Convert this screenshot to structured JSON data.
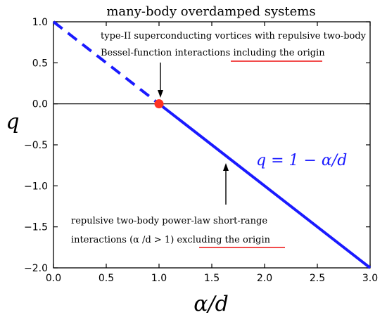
{
  "chart_data": {
    "type": "line",
    "title": "many-body overdamped systems",
    "xlabel": "α/d",
    "ylabel": "q",
    "xlim": [
      0.0,
      3.0
    ],
    "ylim": [
      -2.0,
      1.0
    ],
    "x_ticks": [
      "0.0",
      "0.5",
      "1.0",
      "1.5",
      "2.0",
      "2.5",
      "3.0"
    ],
    "y_ticks": [
      "1.0",
      "0.5",
      "0.0",
      "−0.5",
      "−1.0",
      "−1.5",
      "−2.0"
    ],
    "series": [
      {
        "segment": "dashed",
        "x": [
          0.0,
          1.0
        ],
        "y": [
          1.0,
          0.0
        ]
      },
      {
        "segment": "solid",
        "x": [
          1.0,
          3.0
        ],
        "y": [
          0.0,
          -2.0
        ]
      }
    ],
    "reference_line": {
      "y": 0.0
    },
    "marker_point": {
      "x": 1.0,
      "y": 0.0
    },
    "equation_label": "q = 1 − α/d",
    "annotations": {
      "upper_line1": "type-II superconducting vortices with repulsive two-body",
      "upper_line2_plain": "Bessel-function interactions ",
      "upper_line2_underlined": "including the origin",
      "lower_line1": "repulsive two-body power-law short-range",
      "lower_line2_plain": "interactions (α /d > 1) ",
      "lower_line2_underlined": "excluding the origin"
    },
    "colors": {
      "line": "#1a1aff",
      "marker": "#ff3322",
      "underline": "#ee1111",
      "axes": "#000000"
    },
    "grid": false
  }
}
